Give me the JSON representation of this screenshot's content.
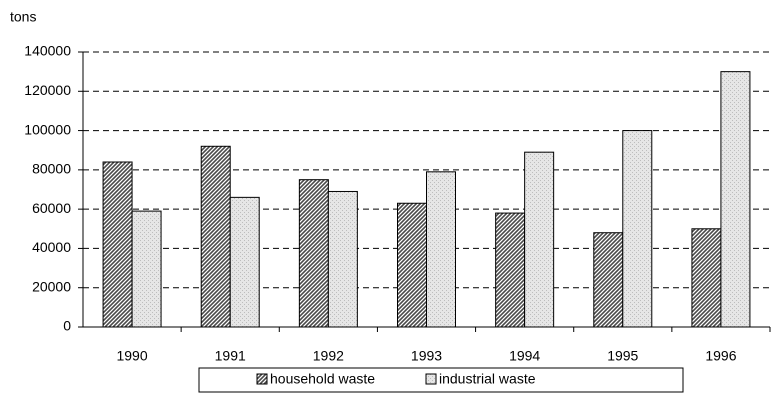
{
  "chart_data": {
    "type": "bar",
    "y_label": "tons",
    "categories": [
      "1990",
      "1991",
      "1992",
      "1993",
      "1994",
      "1995",
      "1996"
    ],
    "series": [
      {
        "name": "household waste",
        "color": "#4a4a4a",
        "values": [
          84000,
          92000,
          75000,
          63000,
          58000,
          48000,
          50000
        ]
      },
      {
        "name": "industrial waste",
        "color": "#bdbdbd",
        "values": [
          59000,
          66000,
          69000,
          79000,
          89000,
          100000,
          130000
        ]
      }
    ],
    "ylim": [
      0,
      140000
    ],
    "yticks": [
      0,
      20000,
      40000,
      60000,
      80000,
      100000,
      120000,
      140000
    ],
    "grid": true
  }
}
